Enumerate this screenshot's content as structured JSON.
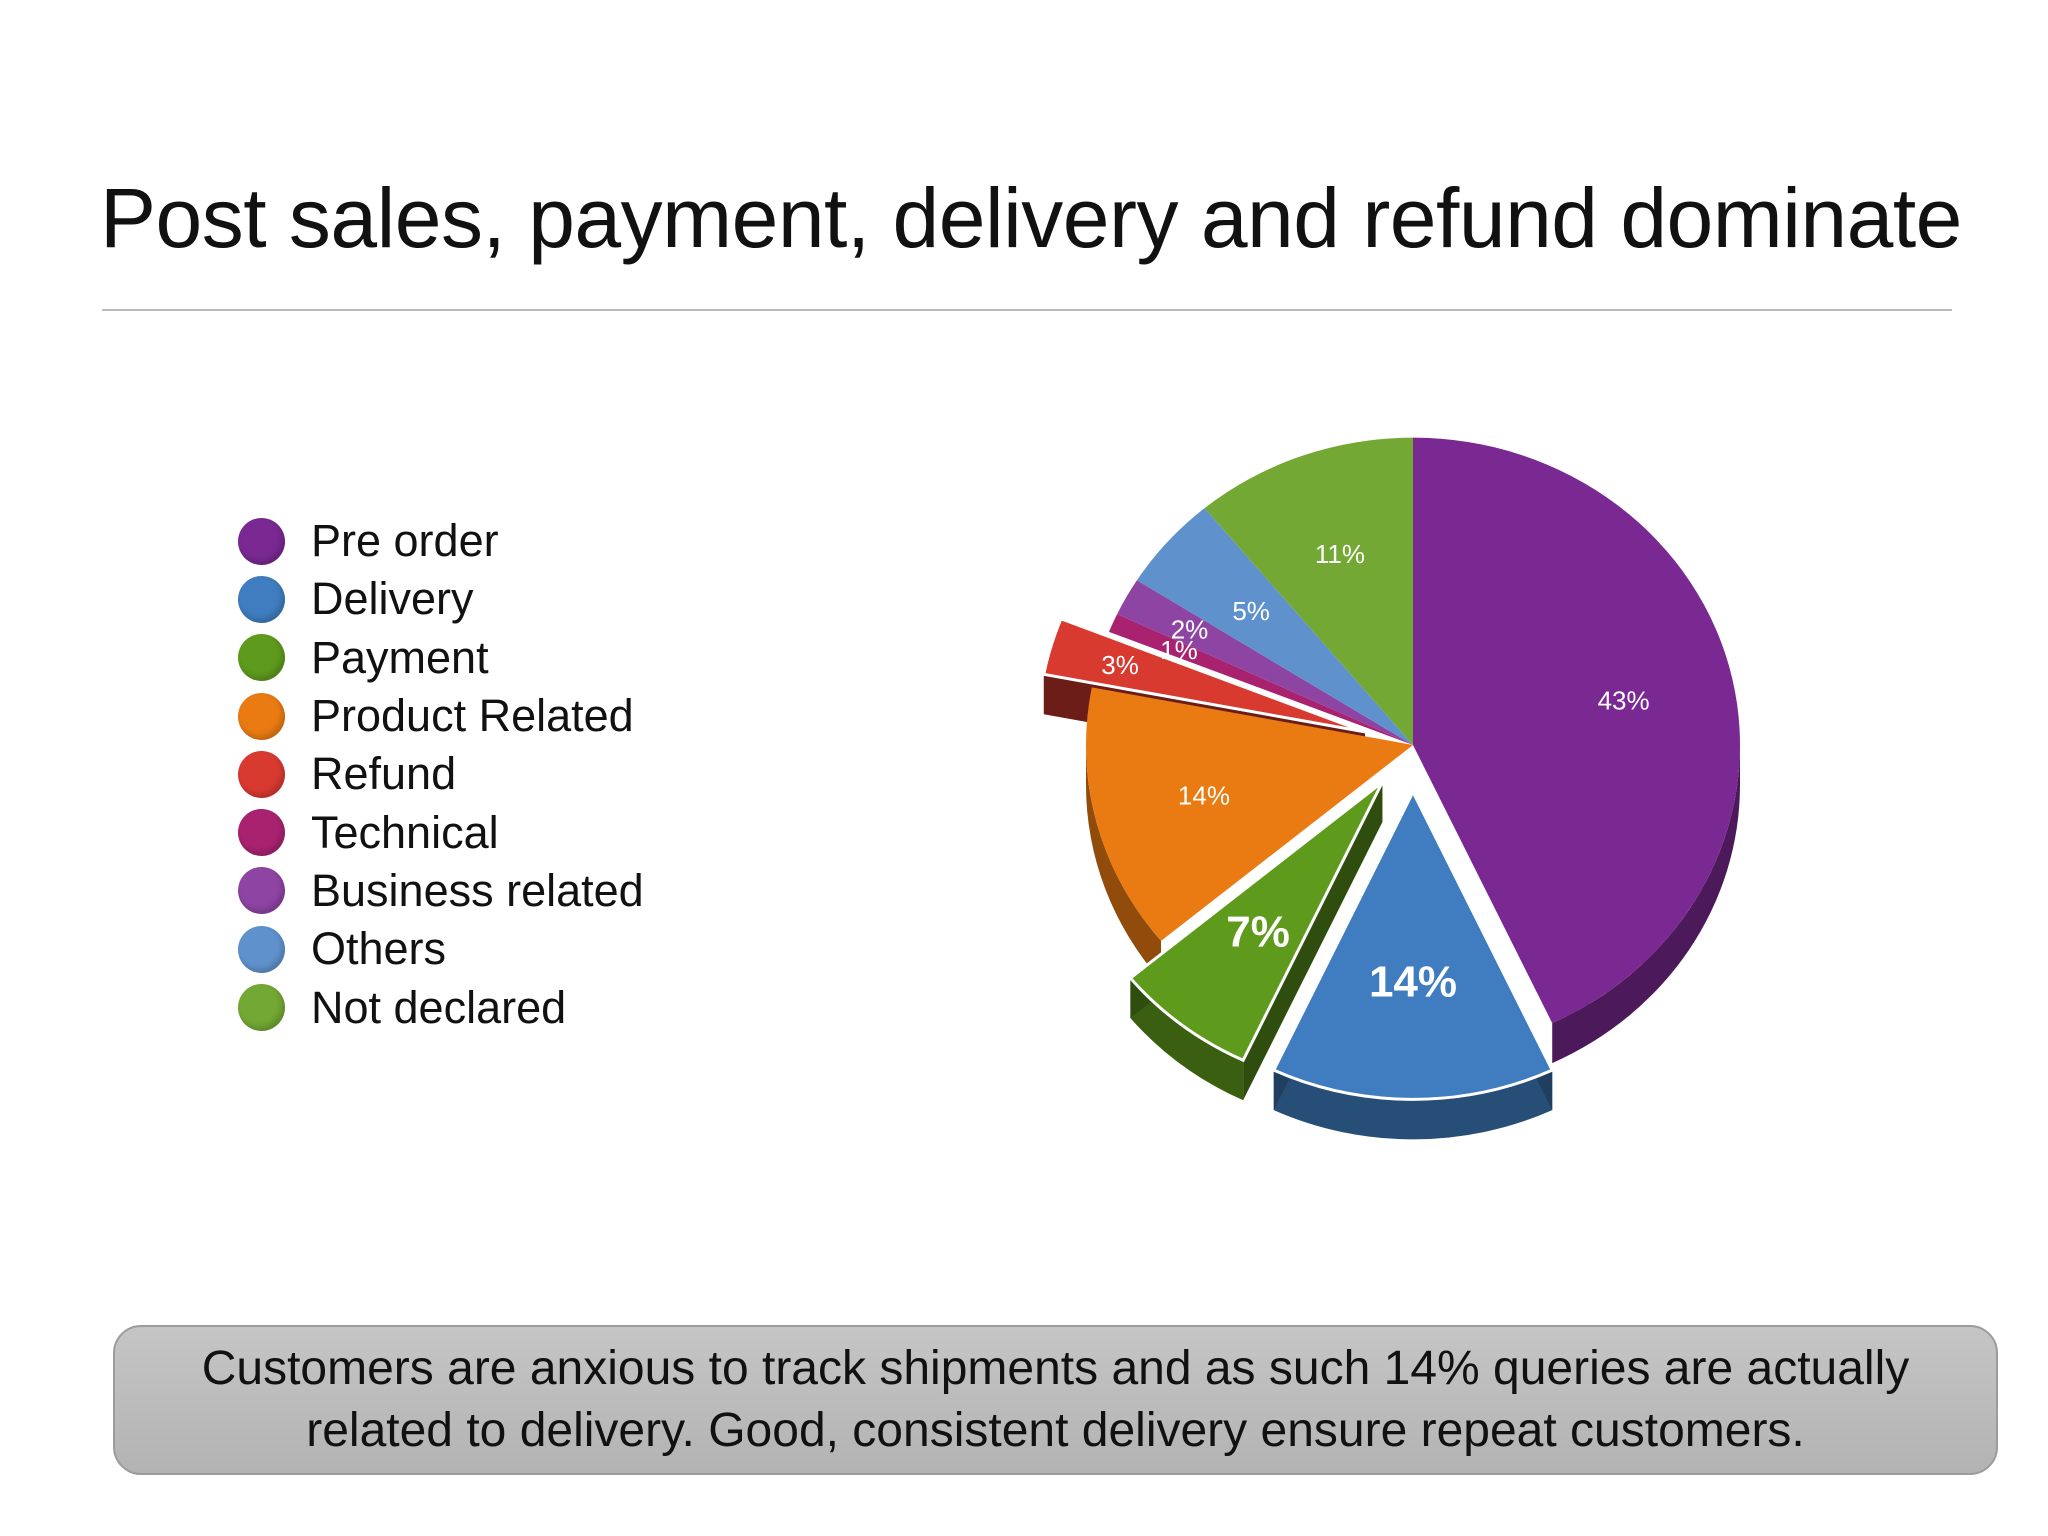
{
  "slide": {
    "title": "Post sales, payment, delivery and refund dominate",
    "callout": "Customers are anxious to track shipments and as such 14% queries are actually related to delivery. Good, consistent delivery ensure repeat customers."
  },
  "chart_data": {
    "type": "pie",
    "title": "",
    "legend": {
      "position": "left"
    },
    "categories": [
      "Pre order",
      "Delivery",
      "Payment",
      "Product Related",
      "Refund",
      "Technical",
      "Business related",
      "Others",
      "Not declared"
    ],
    "values": [
      43,
      14,
      7,
      14,
      3,
      1,
      2,
      5,
      11
    ],
    "labels": [
      "43%",
      "14%",
      "7%",
      "14%",
      "3%",
      "1%",
      "2%",
      "5%",
      "11%"
    ],
    "exploded": [
      "Delivery",
      "Payment",
      "Refund"
    ],
    "colors": [
      "#7a2892",
      "#3f7dc0",
      "#5e9a1c",
      "#ea7b12",
      "#d93a30",
      "#a82270",
      "#8e44a3",
      "#5f92cc",
      "#73a834"
    ]
  }
}
